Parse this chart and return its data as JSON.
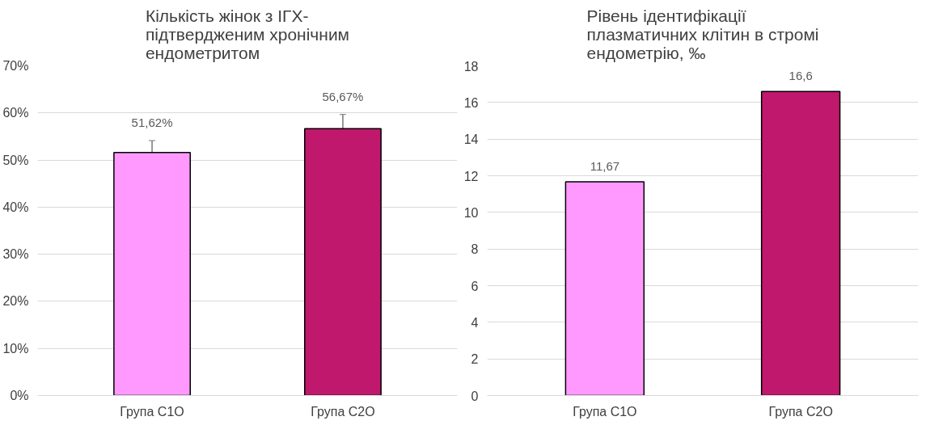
{
  "chart_data": [
    {
      "type": "bar",
      "title": "Кількість жінок з ІГХ-підтвердженим хронічним ендометритом",
      "categories": [
        "Група С1О",
        "Група С2О"
      ],
      "values": [
        51.62,
        56.67
      ],
      "colors": [
        "#ff99ff",
        "#c0186c"
      ],
      "errors": [
        2.5,
        3
      ],
      "value_labels": [
        "51,62%",
        "56,67%"
      ],
      "ylim": [
        0,
        70
      ],
      "yticks": [
        {
          "value": 0,
          "label": "0%"
        },
        {
          "value": 10,
          "label": "10%"
        },
        {
          "value": 20,
          "label": "20%"
        },
        {
          "value": 30,
          "label": "30%"
        },
        {
          "value": 40,
          "label": "40%"
        },
        {
          "value": 50,
          "label": "50%"
        },
        {
          "value": 60,
          "label": "60%"
        },
        {
          "value": 70,
          "label": "70%"
        }
      ],
      "grid": "y"
    },
    {
      "type": "bar",
      "title": "Рівень ідентифікації плазматичних клітин в стромі ендометрію, ‰",
      "categories": [
        "Група С1О",
        "Група С2О"
      ],
      "values": [
        11.67,
        16.6
      ],
      "colors": [
        "#ff99ff",
        "#c0186c"
      ],
      "value_labels": [
        "11,67",
        "16,6"
      ],
      "ylim": [
        0,
        18
      ],
      "yticks": [
        0,
        2,
        4,
        6,
        8,
        10,
        12,
        14,
        16,
        18
      ],
      "grid": "y"
    }
  ]
}
